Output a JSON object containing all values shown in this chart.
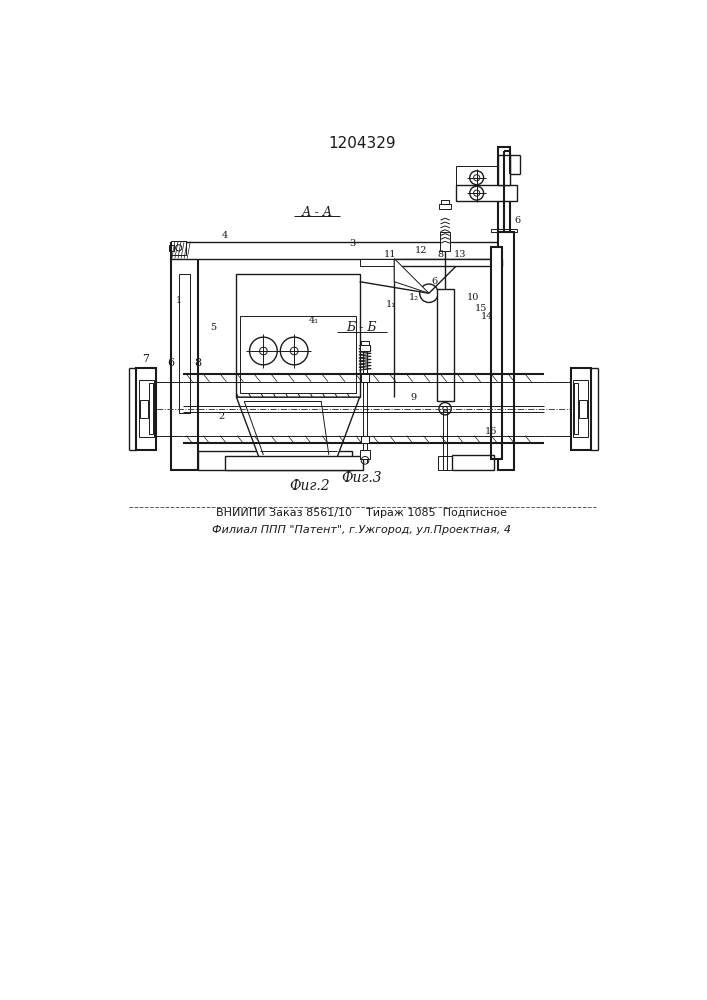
{
  "title": "1204329",
  "fig2_label": "Фиг.2",
  "fig3_label": "Фиг.3",
  "section_aa": "А - А",
  "section_bb": "Б - Б",
  "footer_line1": "ВНИИПИ Заказ 8561/10    Тираж 1085  Подписное",
  "footer_line2": "Филиал ППП \"Патент\", г.Ужгород, ул.Проектная, 4",
  "bg_color": "#ffffff",
  "line_color": "#1a1a1a"
}
